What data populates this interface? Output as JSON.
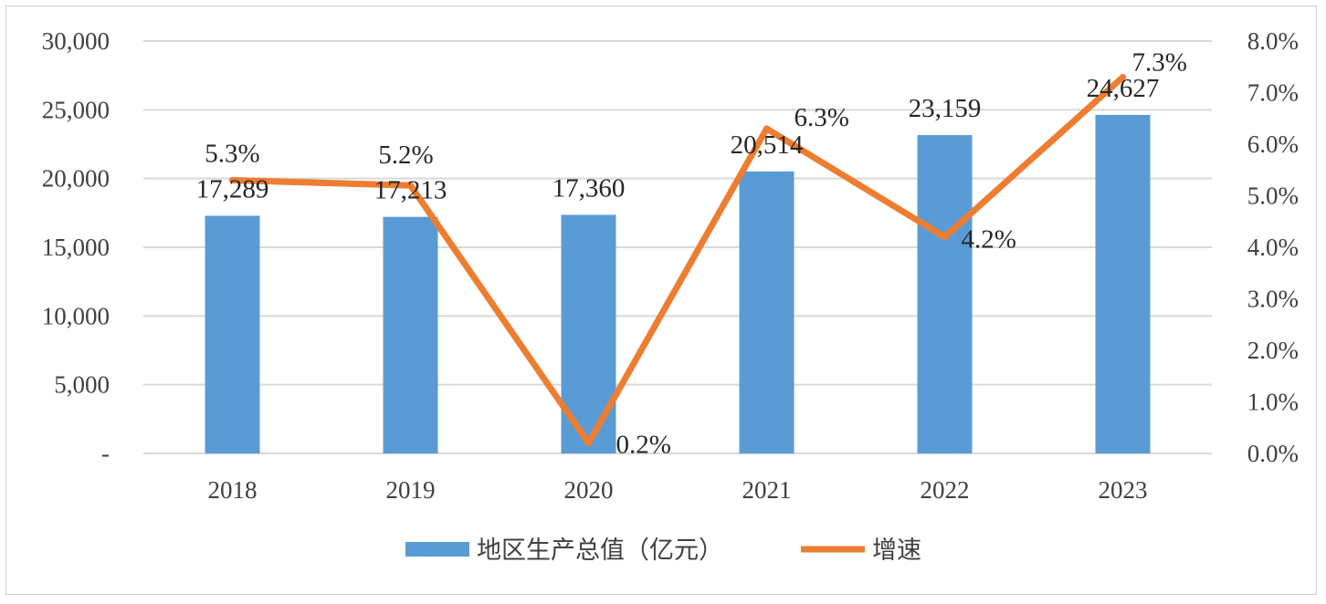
{
  "chart_data": {
    "type": "bar+line",
    "title": "",
    "categories": [
      "2018",
      "2019",
      "2020",
      "2021",
      "2022",
      "2023"
    ],
    "series": [
      {
        "name": "地区生产总值（亿元）",
        "type": "bar",
        "axis": "left",
        "color": "#5B9BD5",
        "values": [
          17289,
          17213,
          17360,
          20514,
          23159,
          24627
        ],
        "labels": [
          "17,289",
          "17,213",
          "17,360",
          "20,514",
          "23,159",
          "24,627"
        ]
      },
      {
        "name": "增速",
        "type": "line",
        "axis": "right",
        "color": "#ED7D31",
        "values": [
          5.3,
          5.2,
          0.2,
          6.3,
          4.2,
          7.3
        ],
        "labels": [
          "5.3%",
          "5.2%",
          "0.2%",
          "6.3%",
          "4.2%",
          "7.3%"
        ]
      }
    ],
    "y_left": {
      "range": [
        0,
        30000
      ],
      "ticks": [
        "-",
        "5,000",
        "10,000",
        "15,000",
        "20,000",
        "25,000",
        "30,000"
      ]
    },
    "y_right": {
      "range": [
        0,
        8
      ],
      "ticks": [
        "0.0%",
        "1.0%",
        "2.0%",
        "3.0%",
        "4.0%",
        "5.0%",
        "6.0%",
        "7.0%",
        "8.0%"
      ]
    },
    "grid": true,
    "legend_position": "bottom"
  }
}
